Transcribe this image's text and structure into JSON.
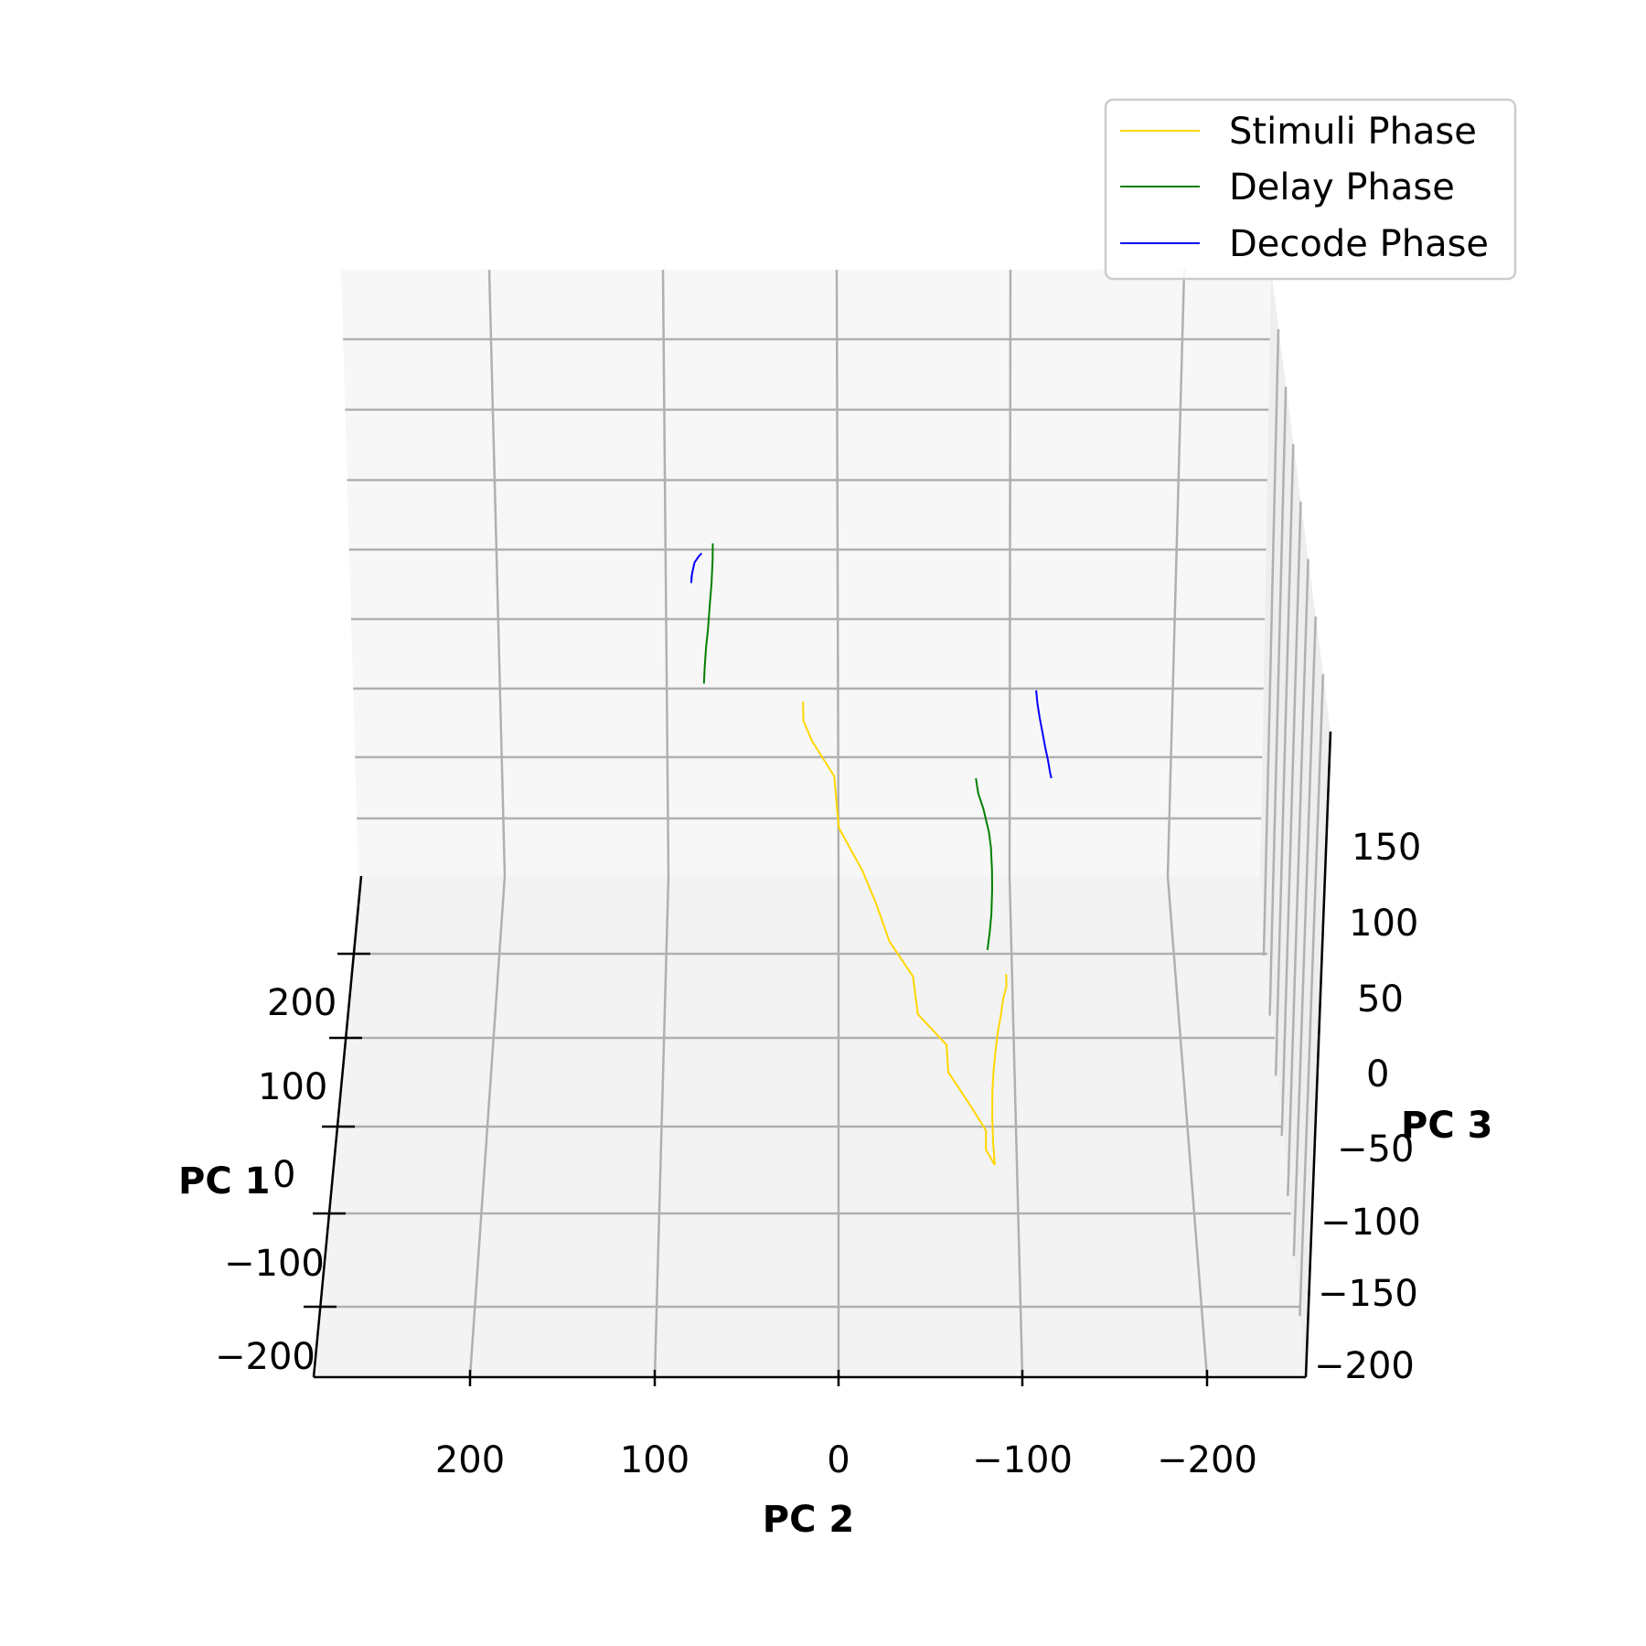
{
  "chart_data": {
    "type": "line",
    "projection": "3d",
    "title": "",
    "xlabel": "PC 1",
    "ylabel": "PC 2",
    "zlabel": "PC 3",
    "x_ticks": [
      "200",
      "100",
      "0",
      "−100",
      "−200"
    ],
    "y_ticks": [
      "200",
      "100",
      "0",
      "−100",
      "−200"
    ],
    "z_ticks": [
      "150",
      "100",
      "50",
      "0",
      "−50",
      "−100",
      "−150",
      "−200"
    ],
    "grid": true,
    "legend_position": "top-right",
    "series": [
      {
        "name": "Stimuli Phase",
        "color": "#ffd700",
        "trajectories": [
          [
            [
              0.08,
              86
            ],
            [
              0.12,
              76
            ],
            [
              0.15,
              65
            ],
            [
              0.2,
              46
            ],
            [
              0.28,
              18
            ],
            [
              0.35,
              -5
            ],
            [
              0.42,
              -22
            ],
            [
              0.5,
              -42
            ],
            [
              0.58,
              -60
            ],
            [
              0.65,
              -80
            ],
            [
              0.72,
              -96
            ],
            [
              0.78,
              -110
            ],
            [
              0.85,
              -125
            ],
            [
              0.92,
              -140
            ],
            [
              0.97,
              -150
            ],
            [
              1.0,
              -158
            ]
          ],
          [
            [
              0.88,
              32
            ],
            [
              0.9,
              20
            ],
            [
              0.92,
              8
            ],
            [
              0.93,
              -10
            ],
            [
              0.94,
              -25
            ],
            [
              0.95,
              -45
            ],
            [
              0.96,
              -65
            ],
            [
              0.97,
              -85
            ],
            [
              0.98,
              -110
            ],
            [
              0.99,
              -135
            ],
            [
              1.0,
              -158
            ]
          ]
        ]
      },
      {
        "name": "Delay Phase",
        "color": "#008000",
        "trajectories": [
          [
            [
              0.02,
              248
            ],
            [
              0.03,
              240
            ],
            [
              0.04,
              228
            ],
            [
              0.05,
              218
            ],
            [
              0.06,
              205
            ],
            [
              0.07,
              196
            ],
            [
              0.08,
              186
            ],
            [
              0.09,
              178
            ]
          ],
          [
            [
              0.78,
              172
            ],
            [
              0.8,
              160
            ],
            [
              0.82,
              148
            ],
            [
              0.84,
              130
            ],
            [
              0.85,
              118
            ],
            [
              0.86,
              100
            ],
            [
              0.87,
              84
            ],
            [
              0.88,
              64
            ],
            [
              0.89,
              50
            ],
            [
              0.9,
              36
            ]
          ]
        ]
      },
      {
        "name": "Decode Phase",
        "color": "#0000ff",
        "trajectories": [
          [
            [
              0.0,
              235
            ],
            [
              0.02,
              232
            ],
            [
              0.04,
              226
            ],
            [
              0.05,
              218
            ],
            [
              0.06,
              212
            ],
            [
              0.07,
              206
            ],
            [
              0.08,
              214
            ],
            [
              0.09,
              222
            ]
          ],
          [
            [
              0.93,
              205
            ],
            [
              0.94,
              196
            ],
            [
              0.95,
              187
            ],
            [
              0.96,
              178
            ],
            [
              0.97,
              168
            ],
            [
              0.98,
              160
            ],
            [
              0.99,
              152
            ],
            [
              1.0,
              148
            ]
          ]
        ]
      }
    ]
  }
}
